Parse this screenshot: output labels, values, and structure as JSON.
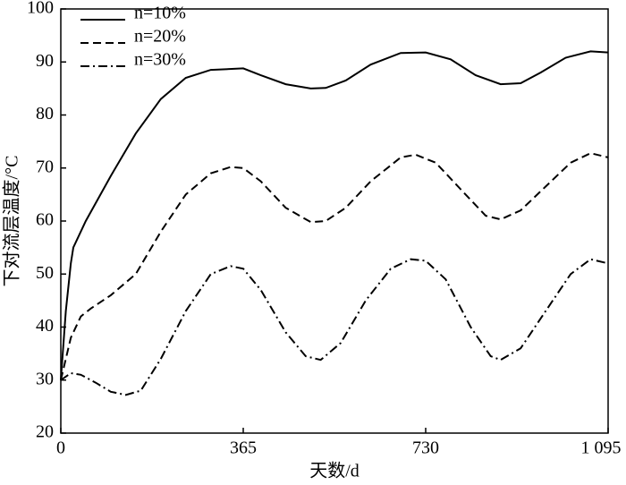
{
  "chart_data": {
    "type": "line",
    "xlabel": "天数/d",
    "ylabel": "下对流层温度/°C",
    "xlim": [
      0,
      1095
    ],
    "ylim": [
      20,
      100
    ],
    "xticks": [
      0,
      365,
      730,
      {
        "value": 1095,
        "label": "1 095"
      }
    ],
    "yticks": [
      20,
      30,
      40,
      50,
      60,
      70,
      80,
      90,
      100
    ],
    "legend": "upper left",
    "series": [
      {
        "name": "n=10%",
        "color": "#000000",
        "dash": "solid",
        "x": [
          0,
          10,
          20,
          25,
          50,
          100,
          150,
          200,
          250,
          300,
          365,
          400,
          450,
          500,
          530,
          570,
          620,
          680,
          730,
          780,
          830,
          880,
          920,
          960,
          1010,
          1060,
          1095
        ],
        "values": [
          30,
          43,
          52,
          55,
          60,
          68.5,
          76.5,
          83,
          87,
          88.5,
          88.8,
          87.5,
          85.8,
          85,
          85.1,
          86.5,
          89.5,
          91.7,
          91.8,
          90.5,
          87.5,
          85.8,
          86,
          88,
          90.8,
          92,
          91.8
        ]
      },
      {
        "name": "n=20%",
        "color": "#000000",
        "dash": "dashed",
        "x": [
          0,
          20,
          40,
          60,
          100,
          150,
          200,
          250,
          300,
          340,
          365,
          400,
          450,
          500,
          530,
          570,
          620,
          680,
          710,
          750,
          800,
          850,
          880,
          920,
          970,
          1020,
          1060,
          1095
        ],
        "values": [
          30,
          38,
          42,
          43.5,
          46,
          50,
          58,
          65,
          69,
          70.2,
          70,
          67.5,
          62.5,
          59.8,
          60,
          62.5,
          67.5,
          72,
          72.5,
          71,
          66,
          61,
          60.3,
          62,
          66.5,
          71,
          72.8,
          72
        ]
      },
      {
        "name": "n=30%",
        "color": "#000000",
        "dash": "dashdot",
        "x": [
          0,
          20,
          40,
          70,
          100,
          130,
          160,
          200,
          250,
          300,
          340,
          365,
          400,
          450,
          490,
          520,
          560,
          610,
          660,
          700,
          730,
          770,
          820,
          860,
          880,
          920,
          970,
          1020,
          1060,
          1095
        ],
        "values": [
          30,
          31.3,
          31,
          29.5,
          27.8,
          27.2,
          28,
          34,
          43,
          50,
          51.5,
          51,
          47,
          39,
          34.5,
          33.8,
          37,
          45,
          51,
          52.8,
          52.5,
          49,
          40,
          34.5,
          33.8,
          36,
          43,
          50,
          52.8,
          52
        ]
      }
    ]
  }
}
